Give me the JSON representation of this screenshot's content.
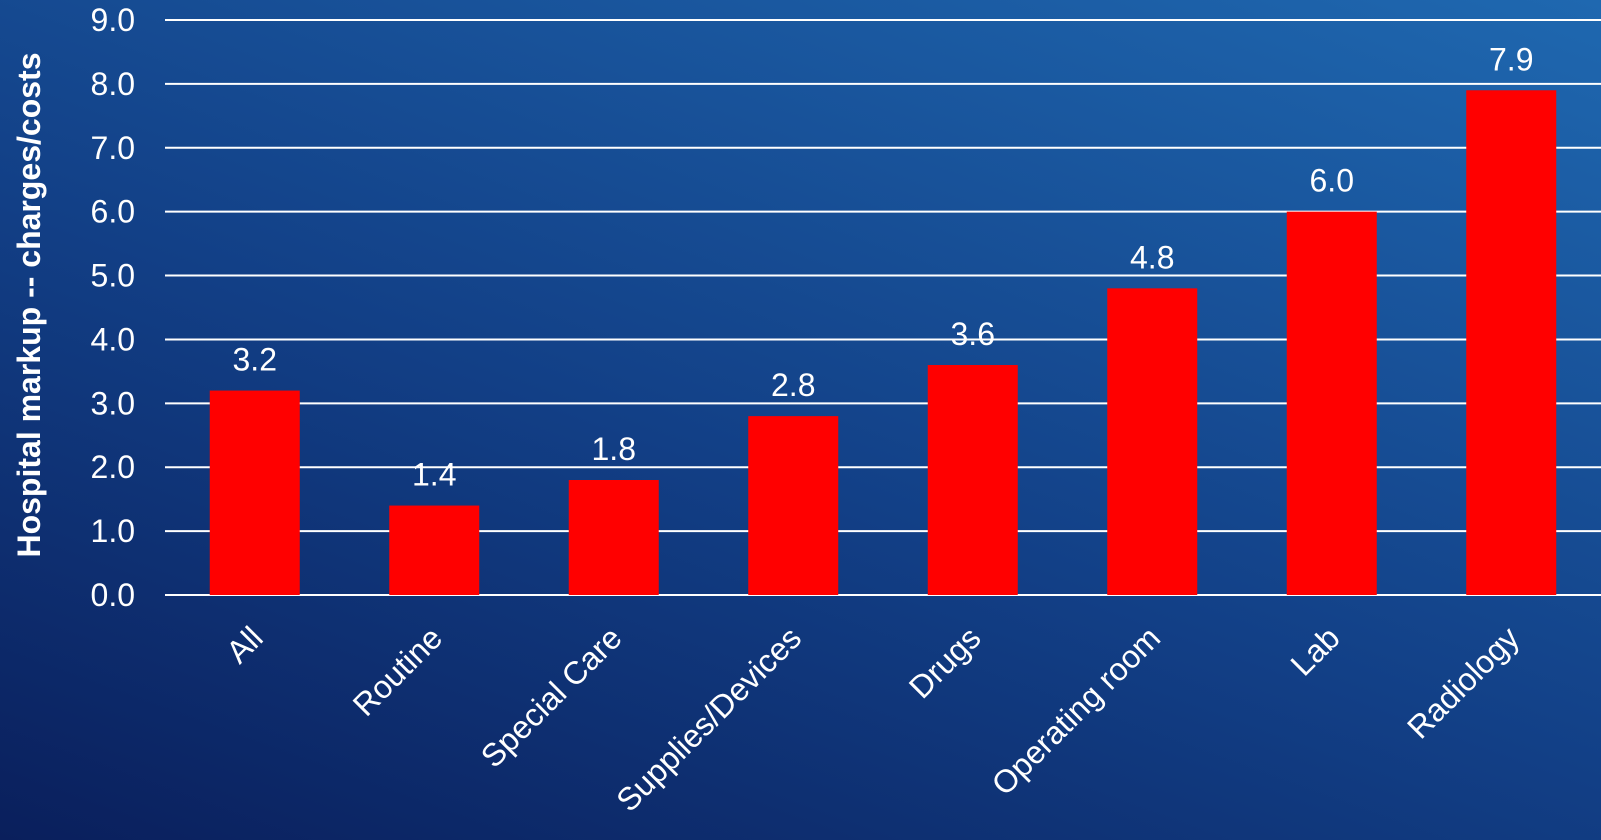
{
  "chart_data": {
    "type": "bar",
    "title": "",
    "xlabel": "",
    "ylabel": "Hospital markup -- charges/costs",
    "categories": [
      "All",
      "Routine",
      "Special Care",
      "Supplies/Devices",
      "Drugs",
      "Operating room",
      "Lab",
      "Radiology"
    ],
    "values": [
      3.2,
      1.4,
      1.8,
      2.8,
      3.6,
      4.8,
      6.0,
      7.9
    ],
    "data_labels": [
      "3.2",
      "1.4",
      "1.8",
      "2.8",
      "3.6",
      "4.8",
      "6.0",
      "7.9"
    ],
    "ylim": [
      0,
      9
    ],
    "yticks": [
      "0.0",
      "1.0",
      "2.0",
      "3.0",
      "4.0",
      "5.0",
      "6.0",
      "7.0",
      "8.0",
      "9.0"
    ],
    "grid": true,
    "legend": "none",
    "colors": {
      "bar": "#ff0000",
      "text": "#ffffff",
      "grid": "#ffffff"
    }
  }
}
